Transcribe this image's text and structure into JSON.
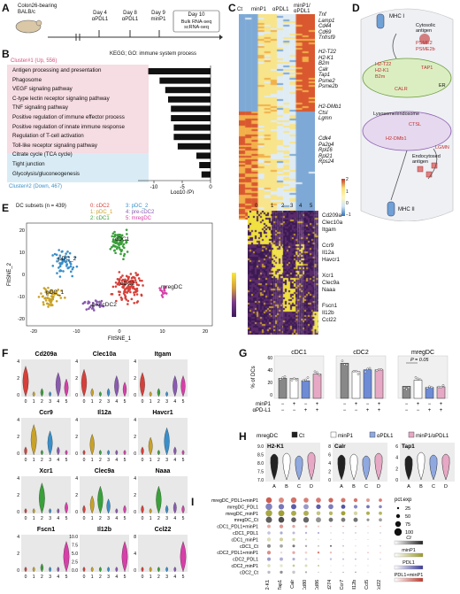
{
  "panel_labels": [
    "A",
    "B",
    "C",
    "D",
    "E",
    "F",
    "G",
    "H",
    "I"
  ],
  "A": {
    "mouse": "Colon26-bearing BALB/c",
    "steps": [
      "Day 4 αPDL1",
      "Day 8 αPDL1",
      "Day 9 minP1"
    ],
    "end_day": "Day 10",
    "end_assays": "Bulk RNA-seq scRNA-seq"
  },
  "B": {
    "title": "KEGG; GO: immune system process",
    "cluster1": "Cluster#1 (Up, 556)",
    "cluster2": "Cluster#2 (Down, 467)",
    "xlabel": "Log10 (P)",
    "terms_up": [
      "Antigen processing and presentation",
      "Phagosome",
      "VEGF signaling pathway",
      "C-type lectin receptor signaling pathway",
      "TNF signaling pathway",
      "Positive regulation of immune effector process",
      "Positive regulation of innate immune response",
      "Regulation of T-cell activation",
      "Toll-like receptor signaling pathway"
    ],
    "terms_down": [
      "Citrate cycle (TCA cycle)",
      "Tight junction",
      "Glycolysis/gluconeogenesis"
    ],
    "ticks": [
      "-10",
      "-5",
      "0"
    ]
  },
  "C": {
    "cols": [
      "Ct",
      "minP1",
      "αPDL1",
      "minP1/ αPDL1"
    ],
    "genes_top": [
      "Tnf",
      "Lamp1",
      "Cd44",
      "Cd69",
      "Tnfrsf9"
    ],
    "genes_mid": [
      "H2-T22",
      "H2-K1",
      "B2m",
      "Calr",
      "Tap1",
      "Psme2",
      "Psme2b"
    ],
    "genes_mid2": [
      "H2-DMb1",
      "Ctsl",
      "Lgmn"
    ],
    "genes_bot": [
      "Cdk4",
      "Pa2g4",
      "Rpl16",
      "Rpl21",
      "Rps24"
    ],
    "scale": [
      "2",
      "1",
      "0",
      "−1"
    ]
  },
  "D": {
    "mhc1": "MHC I",
    "cytosolic": "Cytosolic antigen",
    "psme2": "PSME2",
    "psme2b": "PSME2b",
    "h2t22": "H2-T22",
    "h2k1": "H2-K1",
    "b2m": "B2m",
    "tap1": "TAP1",
    "calr": "CALR",
    "er": "ER",
    "lyso": "Lysosome/endosome",
    "ctsl": "CTSL",
    "h2dmb1": "H2-DMb1",
    "lgmn": "LGMN",
    "endo": "Endocytosed antigen",
    "mhc2": "MHC II"
  },
  "E": {
    "title": "DC subsets (n = 439)",
    "legend": [
      "0: cDC2",
      "1: pDC_1",
      "2: cDC1",
      "3: pDC_2",
      "4: pre-cDC2",
      "5: mregDC"
    ],
    "legend_colors": [
      "#d6403a",
      "#c9a227",
      "#3aa03a",
      "#3a8fc9",
      "#8a5ab0",
      "#d640a8"
    ],
    "xlabel": "FItSNE_1",
    "ylabel": "FItSNE_2",
    "cluster_labels": [
      "cDC1",
      "pDC_2",
      "cDC2",
      "mregDC",
      "pDC_1",
      "pre-cDC2"
    ],
    "heat_cols": [
      "0",
      "1",
      "2",
      "3",
      "4",
      "5"
    ],
    "heat_genes": [
      "Cd209a",
      "Clec10a",
      "Itgam",
      "Ccr9",
      "Il12a",
      "Havcr1",
      "Xcr1",
      "Clec9a",
      "Naaa",
      "Fscn1",
      "Il12b",
      "Ccl22"
    ],
    "scale": [
      "2",
      "1",
      "0",
      "-1",
      "-2"
    ],
    "xticks": [
      "-20",
      "-10",
      "0",
      "10",
      "20"
    ],
    "yticks": [
      "20",
      "10",
      "0",
      "-10",
      "-20"
    ]
  },
  "F": {
    "genes": [
      "Cd209a",
      "Clec10a",
      "Itgam",
      "Ccr9",
      "Il12a",
      "Havcr1",
      "Xcr1",
      "Clec9a",
      "Naaa",
      "Fscn1",
      "Il12b",
      "Ccl22"
    ],
    "xticks": [
      "0",
      "1",
      "2",
      "3",
      "4",
      "5"
    ],
    "yticks_a": [
      "4",
      "2",
      "0"
    ],
    "yticks_b": [
      "8",
      "4",
      "0"
    ],
    "yticks_c": [
      "10.0",
      "7.5",
      "5.0",
      "2.5",
      "0.0"
    ]
  },
  "G": {
    "titles": [
      "cDC1",
      "cDC2",
      "mregDC"
    ],
    "ylabel": "% of DCs",
    "pval": "P = 0.05",
    "row1": "minP1",
    "row2": "αPD-L1",
    "signs1": [
      "−",
      "+",
      "−",
      "+"
    ],
    "signs2": [
      "−",
      "−",
      "+",
      "+"
    ],
    "yticks": [
      "60",
      "40",
      "20",
      "0"
    ],
    "cdc1": [
      33,
      33,
      29,
      40
    ],
    "cdc2": [
      58,
      44,
      47,
      47
    ],
    "mreg": [
      20,
      30,
      18,
      19
    ],
    "colors": [
      "#888888",
      "#ffffff",
      "#6e8bd6",
      "#e6a8c4"
    ]
  },
  "H": {
    "title": "mregDC",
    "legend": [
      "Ct",
      "minP1",
      "αPDL1",
      "minP1/αPDL1"
    ],
    "legend_colors": [
      "#222222",
      "#ffffff",
      "#8fa8e0",
      "#e6a8c4"
    ],
    "genes": [
      "H2-K1",
      "Calr",
      "Tap1"
    ],
    "xticks": [
      "A",
      "B",
      "C",
      "D"
    ],
    "yticks_a": [
      "9.0",
      "8.5",
      "8.0",
      "7.5",
      "7.0"
    ],
    "yticks_b": [
      "8",
      "6",
      "4",
      "2",
      "0"
    ],
    "yticks_c": [
      "6",
      "4",
      "2",
      "0"
    ]
  },
  "I": {
    "rows": [
      "mregDC_PDL1+minP1",
      "mregDC_PDL1",
      "mregDC_minP1",
      "mregDC_Ct",
      "cDC1_PDL1+minP1",
      "cDC1_PDL1",
      "cDC1_minP1",
      "cDC1_Ct",
      "cDC2_PDL1+minP1",
      "cDC2_PDL1",
      "cDC2_minP1",
      "cDC2_Ct"
    ],
    "cols": [
      "H2-K1",
      "Tap1",
      "Calr",
      "Cd80",
      "Cd86",
      "Cd274",
      "Ccr7",
      "Il12b",
      "Ccl5",
      "Ccl22"
    ],
    "size_title": "pct.exp",
    "size_legend": [
      "25",
      "50",
      "75",
      "100"
    ],
    "ct_label": "Ct",
    "minp1_label": "minP1",
    "pdl1_label": "PDL1",
    "combo_label": "PDL1+minP1",
    "min": "Min",
    "max": "Max"
  }
}
